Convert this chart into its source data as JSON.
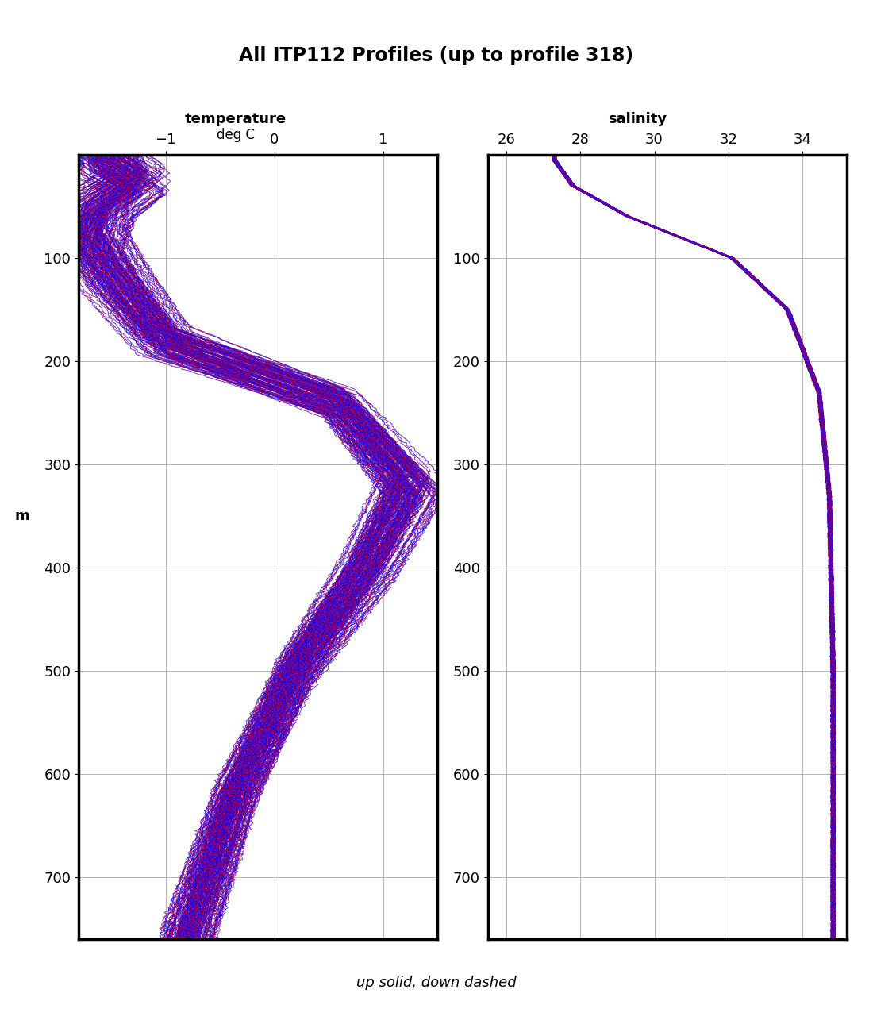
{
  "title": "All ITP112 Profiles (up to profile 318)",
  "title_fontsize": 17,
  "temp_label": "temperature",
  "temp_sublabel": "deg C",
  "sal_label": "salinity",
  "xlabel_bottom": "up solid, down dashed",
  "temp_xlim": [
    -1.8,
    1.5
  ],
  "temp_xticks": [
    -1,
    0,
    1
  ],
  "sal_xlim": [
    25.5,
    35.2
  ],
  "sal_xticks": [
    26,
    28,
    30,
    32,
    34
  ],
  "ylim": [
    760,
    0
  ],
  "yticks": [
    100,
    200,
    300,
    400,
    500,
    600,
    700
  ],
  "blue_color": "#0000FF",
  "red_color": "#FF0000",
  "line_width": 0.5,
  "background_color": "#FFFFFF",
  "n_profiles": 159,
  "seed": 42
}
